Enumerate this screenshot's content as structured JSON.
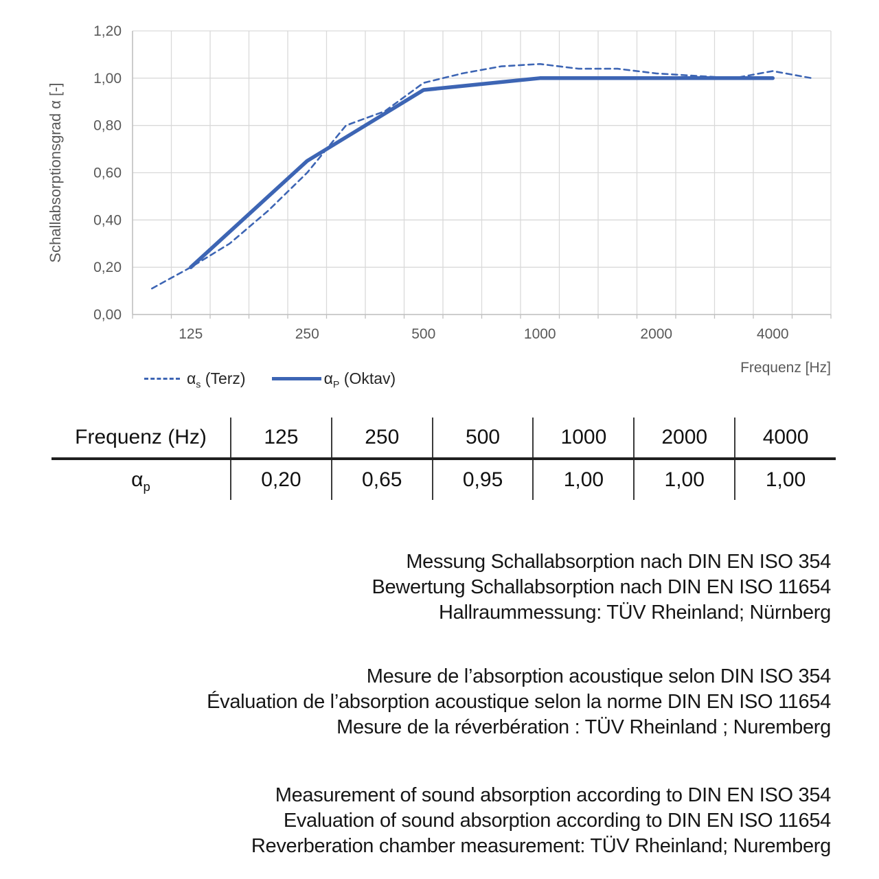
{
  "chart_data": {
    "type": "line",
    "title": "",
    "xlabel": "Frequenz [Hz]",
    "ylabel": "Schallabsorptionsgrad α [-]",
    "x_scale": "logarithmic (third-octave band categories)",
    "grid": true,
    "legend_position": "bottom-left",
    "ylim": [
      0,
      1.2
    ],
    "y_tick_labels": [
      "0,00",
      "0,20",
      "0,40",
      "0,60",
      "0,80",
      "1,00",
      "1,20"
    ],
    "x_tick_labels": [
      "125",
      "250",
      "500",
      "1000",
      "2000",
      "4000"
    ],
    "categories_third_octave": [
      100,
      125,
      160,
      200,
      250,
      315,
      400,
      500,
      630,
      800,
      1000,
      1250,
      1600,
      2000,
      2500,
      3150,
      4000,
      5000
    ],
    "series": [
      {
        "name": "αs (Terz)",
        "style": "dashed",
        "color": "#3d65b4",
        "x": [
          100,
          125,
          160,
          200,
          250,
          315,
          400,
          500,
          630,
          800,
          1000,
          1250,
          1600,
          2000,
          2500,
          3150,
          4000,
          5000
        ],
        "values": [
          0.11,
          0.2,
          0.3,
          0.44,
          0.6,
          0.8,
          0.86,
          0.98,
          1.02,
          1.05,
          1.06,
          1.04,
          1.04,
          1.02,
          1.01,
          1.0,
          1.03,
          1.0
        ]
      },
      {
        "name": "αP (Oktav)",
        "style": "solid",
        "color": "#3d65b4",
        "x": [
          125,
          250,
          500,
          1000,
          2000,
          4000
        ],
        "values": [
          0.2,
          0.65,
          0.95,
          1.0,
          1.0,
          1.0
        ]
      }
    ]
  },
  "legend": {
    "items": [
      {
        "symbol": "α",
        "sub": "s",
        "rest": " (Terz)"
      },
      {
        "symbol": "α",
        "sub": "P",
        "rest": " (Oktav)"
      }
    ]
  },
  "table": {
    "header_label": "Frequenz (Hz)",
    "frequencies": [
      "125",
      "250",
      "500",
      "1000",
      "2000",
      "4000"
    ],
    "row_symbol": "α",
    "row_sub": "p",
    "values": [
      "0,20",
      "0,65",
      "0,95",
      "1,00",
      "1,00",
      "1,00"
    ]
  },
  "notes": {
    "german": [
      "Messung Schallabsorption nach DIN EN ISO 354",
      "Bewertung Schallabsorption nach DIN EN ISO 11654",
      "Hallraummessung: TÜV Rheinland; Nürnberg"
    ],
    "french": [
      "Mesure de l’absorption acoustique selon DIN ISO 354",
      "Évaluation de l’absorption acoustique selon la norme DIN EN ISO 11654",
      "Mesure de la réverbération : TÜV Rheinland ; Nuremberg"
    ],
    "english": [
      "Measurement of sound absorption according to DIN EN ISO 354",
      "Evaluation of sound absorption according to DIN EN ISO 11654",
      "Reverberation chamber measurement: TÜV Rheinland; Nuremberg"
    ]
  }
}
